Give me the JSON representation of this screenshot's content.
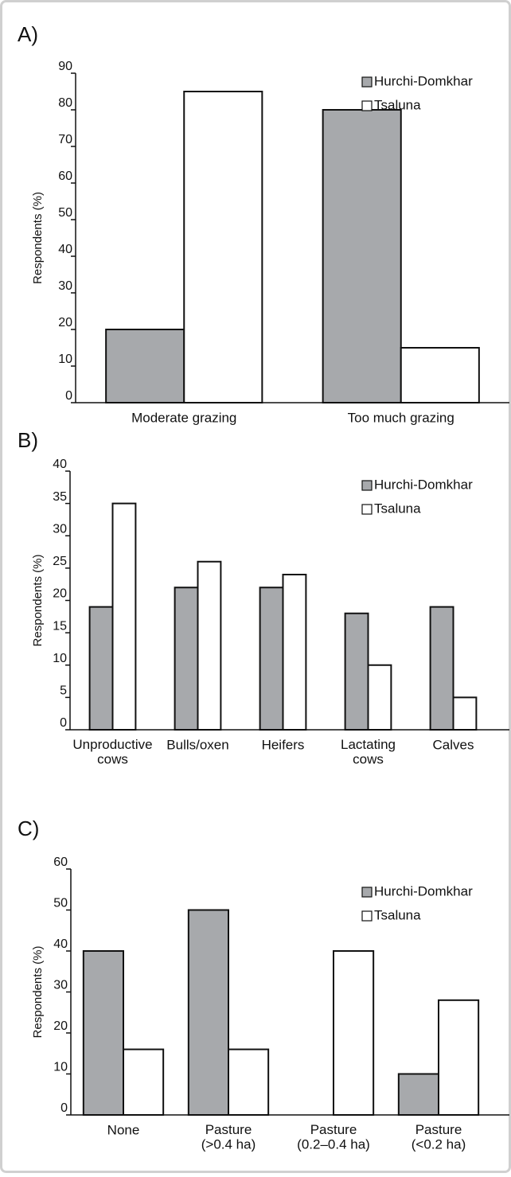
{
  "chart_data": [
    {
      "type": "bar",
      "title": "A)",
      "y_label": "Respondents (%)",
      "categories": [
        "Moderate grazing",
        "Too much grazing"
      ],
      "series": [
        {
          "name": "Hurchi-Domkhar",
          "color": "#a7a9ac",
          "values": [
            20,
            80
          ]
        },
        {
          "name": "Tsaluna",
          "color": "#ffffff",
          "values": [
            85,
            15
          ]
        }
      ],
      "ylim": [
        0,
        90
      ],
      "yticks": [
        0,
        10,
        20,
        30,
        40,
        50,
        60,
        70,
        80,
        90
      ],
      "legend": "upper right"
    },
    {
      "type": "bar",
      "title": "B)",
      "y_label": "Respondents (%)",
      "categories": [
        "Unproductive\ncows",
        "Bulls/oxen",
        "Heifers",
        "Lactating\ncows",
        "Calves"
      ],
      "series": [
        {
          "name": "Hurchi-Domkhar",
          "color": "#a7a9ac",
          "values": [
            19,
            22,
            22,
            18,
            19
          ]
        },
        {
          "name": "Tsaluna",
          "color": "#ffffff",
          "values": [
            35,
            26,
            24,
            10,
            5
          ]
        }
      ],
      "ylim": [
        0,
        40
      ],
      "yticks": [
        0,
        5,
        10,
        15,
        20,
        25,
        30,
        35,
        40
      ],
      "legend": "upper right"
    },
    {
      "type": "bar",
      "title": "C)",
      "y_label": "Respondents (%)",
      "categories": [
        "None",
        "Pasture\n(>0.4 ha)",
        "Pasture\n(0.2–0.4 ha)",
        "Pasture\n(<0.2 ha)"
      ],
      "series": [
        {
          "name": "Hurchi-Domkhar",
          "color": "#a7a9ac",
          "values": [
            40,
            50,
            0,
            10
          ]
        },
        {
          "name": "Tsaluna",
          "color": "#ffffff",
          "values": [
            16,
            16,
            40,
            28
          ]
        }
      ],
      "ylim": [
        0,
        60
      ],
      "yticks": [
        0,
        10,
        20,
        30,
        40,
        50,
        60
      ],
      "legend": "upper right"
    }
  ]
}
